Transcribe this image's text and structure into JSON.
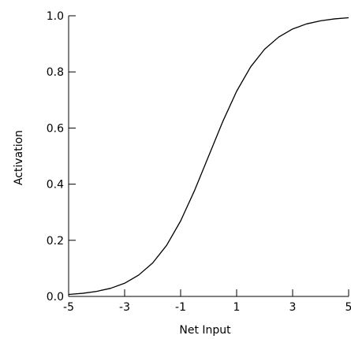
{
  "chart_data": {
    "type": "line",
    "title": "",
    "xlabel": "Net Input",
    "ylabel": "Activation",
    "xlim": [
      -5,
      5
    ],
    "ylim": [
      0.0,
      1.0
    ],
    "x_ticks": [
      -5,
      -3,
      -1,
      1,
      3,
      5
    ],
    "x_tick_labels": [
      "-5",
      "-3",
      "-1",
      "1",
      "3",
      "5"
    ],
    "y_ticks": [
      0.0,
      0.2,
      0.4,
      0.6,
      0.8,
      1.0
    ],
    "y_tick_labels": [
      "0.0",
      "0.2",
      "0.4",
      "0.6",
      "0.8",
      "1.0"
    ],
    "grid": false,
    "legend": "none",
    "colors": {
      "line": "#000000",
      "axis": "#000000"
    },
    "series": [
      {
        "x": [
          -5,
          -4.5,
          -4,
          -3.5,
          -3,
          -2.5,
          -2,
          -1.5,
          -1,
          -0.5,
          0,
          0.5,
          1,
          1.5,
          2,
          2.5,
          3,
          3.5,
          4,
          4.5,
          5
        ],
        "y": [
          0.007,
          0.011,
          0.018,
          0.029,
          0.047,
          0.076,
          0.119,
          0.182,
          0.269,
          0.378,
          0.5,
          0.622,
          0.731,
          0.818,
          0.881,
          0.924,
          0.953,
          0.971,
          0.982,
          0.989,
          0.993
        ]
      }
    ]
  }
}
